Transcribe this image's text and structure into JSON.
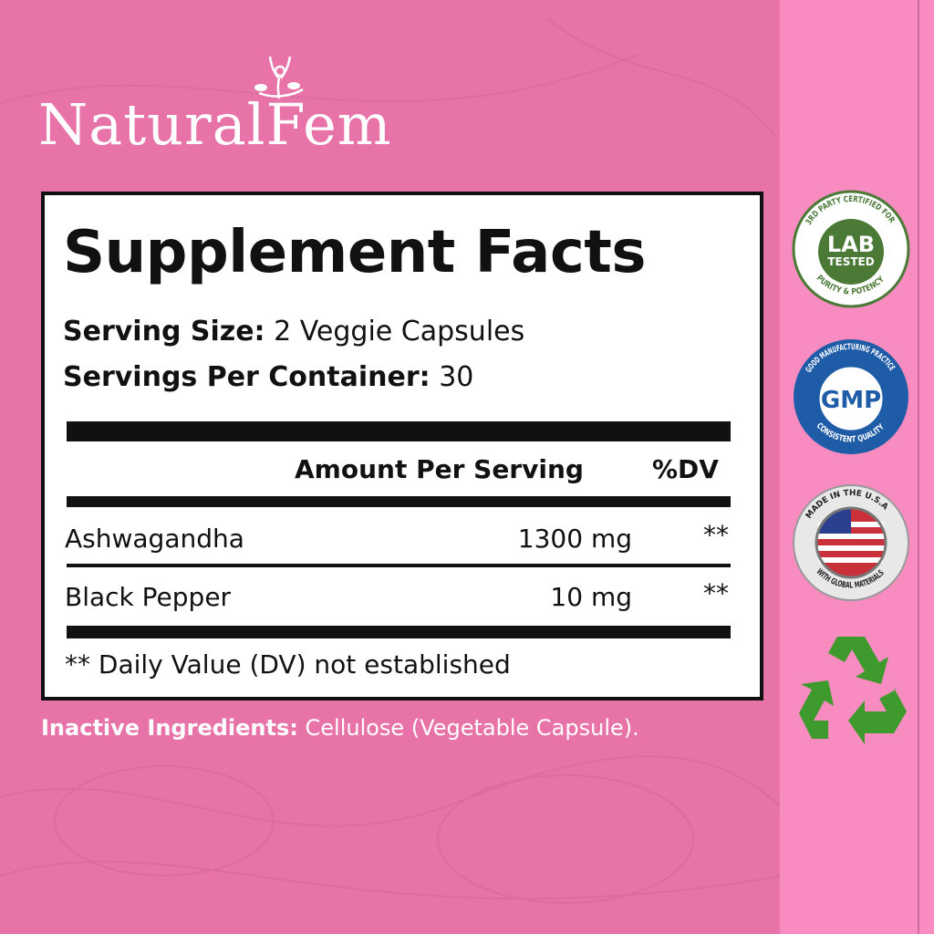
{
  "brand": {
    "name": "NaturalFem",
    "name_left": "Natura",
    "name_right": "Fem"
  },
  "facts": {
    "title": "Supplement Facts",
    "serving_size_label": "Serving Size:",
    "serving_size_value": "2 Veggie Capsules",
    "servings_label": "Servings Per Container:",
    "servings_value": "30",
    "col_amount": "Amount Per Serving",
    "col_dv": "%DV",
    "rows": [
      {
        "name": "Ashwagandha",
        "amount": "1300 mg",
        "dv": "**"
      },
      {
        "name": "Black Pepper",
        "amount": "10 mg",
        "dv": "**"
      }
    ],
    "footnote": "** Daily Value (DV) not established"
  },
  "inactive": {
    "label": "Inactive Ingredients:",
    "value": "Cellulose (Vegetable Capsule)."
  },
  "badges": {
    "lab": {
      "top": "3RD PARTY CERTIFIED FOR",
      "main1": "LAB",
      "main2": "TESTED",
      "bottom": "PURITY & POTENCY"
    },
    "gmp": {
      "top": "GOOD MANUFACTURING PRACTICE",
      "main": "GMP",
      "bottom": "CONSISTENT QUALITY"
    },
    "usa": {
      "top": "MADE IN THE U.S.A",
      "bottom": "WITH GLOBAL MATERIALS"
    },
    "recycle": {
      "icon": "recycle-icon"
    }
  },
  "colors": {
    "background": "#e873a8",
    "strip": "#f88bbf",
    "lab_green": "#4a7a36",
    "gmp_blue": "#1f5ca8"
  }
}
